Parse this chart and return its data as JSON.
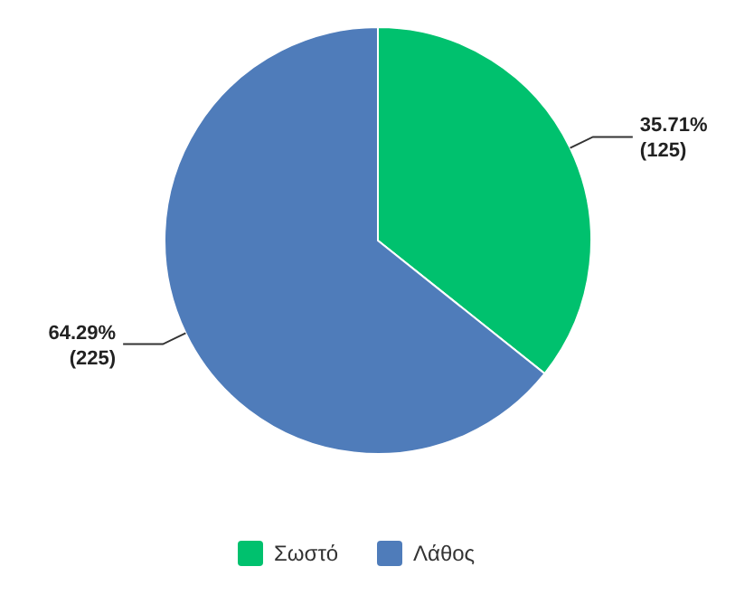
{
  "chart_data": {
    "type": "pie",
    "categories": [
      "Σωστό",
      "Λάθος"
    ],
    "values": [
      125,
      225
    ],
    "colors": [
      "#00c16e",
      "#4f7cba"
    ],
    "value_labels": [
      "35.71%\n(125)",
      "64.29%\n(225)"
    ],
    "legend": "bottom"
  }
}
